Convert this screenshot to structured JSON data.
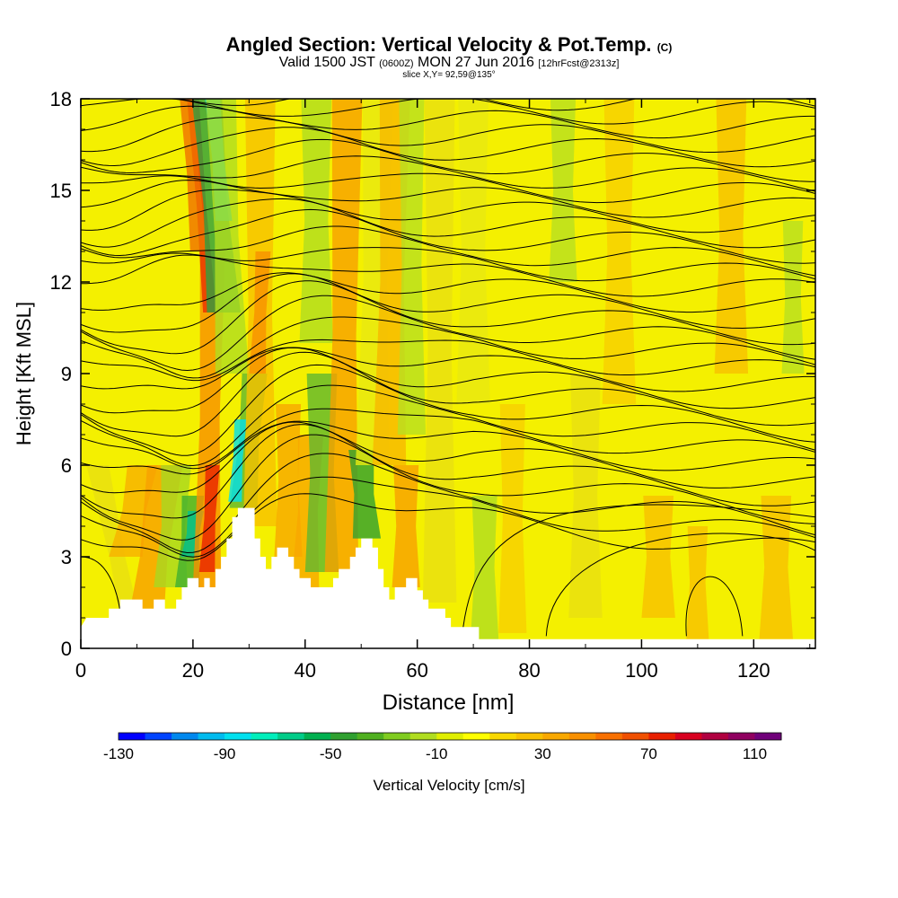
{
  "header": {
    "title": "Angled Section: Vertical Velocity & Pot.Temp.",
    "title_unit": "(C)",
    "valid_prefix": "Valid 1500 JST",
    "valid_zulu": "(0600Z)",
    "valid_date": "MON 27 Jun 2016",
    "forecast": "[12hrFcst@2313z]",
    "slice": "slice X,Y= 92,59@135°"
  },
  "chart_data": {
    "type": "heatmap",
    "xlabel": "Distance [nm]",
    "ylabel": "Height [Kft MSL]",
    "xlim": [
      0,
      131
    ],
    "ylim": [
      0,
      18
    ],
    "x_ticks": [
      0,
      20,
      40,
      60,
      80,
      100,
      120
    ],
    "y_ticks": [
      0,
      3,
      6,
      9,
      12,
      15,
      18
    ],
    "colorbar": {
      "label": "Vertical Velocity [cm/s]",
      "tick_labels": [
        -130,
        -90,
        -50,
        -10,
        30,
        70,
        110
      ],
      "bins": [
        -130,
        -120,
        -110,
        -100,
        -90,
        -80,
        -70,
        -60,
        -50,
        -40,
        -30,
        -20,
        -10,
        0,
        10,
        20,
        30,
        40,
        50,
        60,
        70,
        80,
        90,
        100,
        110,
        120
      ],
      "colors": [
        "#0000ff",
        "#0044ff",
        "#0088ee",
        "#00bbee",
        "#00e0ee",
        "#00eebb",
        "#00cc88",
        "#00b050",
        "#30a030",
        "#50b020",
        "#80cc20",
        "#b0dd20",
        "#e0ee00",
        "#ffff00",
        "#f8d800",
        "#f8c000",
        "#f8a800",
        "#f89000",
        "#f87000",
        "#f05000",
        "#e82000",
        "#d80020",
        "#b00040",
        "#900060",
        "#70007a"
      ]
    },
    "terrain_kft": [
      [
        0,
        0.7
      ],
      [
        1,
        1.0
      ],
      [
        5,
        1.0
      ],
      [
        5,
        1.3
      ],
      [
        7,
        1.3
      ],
      [
        7,
        1.6
      ],
      [
        11,
        1.6
      ],
      [
        11,
        1.3
      ],
      [
        13,
        1.3
      ],
      [
        13,
        1.6
      ],
      [
        15,
        1.6
      ],
      [
        15,
        1.3
      ],
      [
        17,
        1.3
      ],
      [
        17,
        1.6
      ],
      [
        18,
        1.6
      ],
      [
        18,
        2.0
      ],
      [
        19,
        2.0
      ],
      [
        19,
        2.3
      ],
      [
        21,
        2.3
      ],
      [
        21,
        2.0
      ],
      [
        22,
        2.0
      ],
      [
        22,
        2.3
      ],
      [
        23,
        2.3
      ],
      [
        23,
        2.0
      ],
      [
        24,
        2.0
      ],
      [
        24,
        2.6
      ],
      [
        25,
        2.6
      ],
      [
        25,
        3.0
      ],
      [
        26,
        3.0
      ],
      [
        26,
        3.6
      ],
      [
        27,
        3.6
      ],
      [
        27,
        4.3
      ],
      [
        28,
        4.3
      ],
      [
        28,
        4.6
      ],
      [
        31,
        4.6
      ],
      [
        31,
        3.6
      ],
      [
        32,
        3.6
      ],
      [
        32,
        3.0
      ],
      [
        33,
        3.0
      ],
      [
        33,
        2.6
      ],
      [
        34,
        2.6
      ],
      [
        34,
        3.0
      ],
      [
        35,
        3.0
      ],
      [
        35,
        3.3
      ],
      [
        37,
        3.3
      ],
      [
        37,
        3.0
      ],
      [
        38,
        3.0
      ],
      [
        38,
        2.6
      ],
      [
        39,
        2.6
      ],
      [
        39,
        2.3
      ],
      [
        41,
        2.3
      ],
      [
        41,
        2.0
      ],
      [
        45,
        2.0
      ],
      [
        45,
        2.3
      ],
      [
        46,
        2.3
      ],
      [
        46,
        2.6
      ],
      [
        48,
        2.6
      ],
      [
        48,
        3.0
      ],
      [
        49,
        3.0
      ],
      [
        49,
        3.3
      ],
      [
        50,
        3.3
      ],
      [
        50,
        3.6
      ],
      [
        52,
        3.6
      ],
      [
        52,
        3.3
      ],
      [
        53,
        3.3
      ],
      [
        53,
        2.6
      ],
      [
        54,
        2.6
      ],
      [
        54,
        2.0
      ],
      [
        55,
        2.0
      ],
      [
        55,
        1.6
      ],
      [
        56,
        1.6
      ],
      [
        56,
        2.0
      ],
      [
        58,
        2.0
      ],
      [
        58,
        2.3
      ],
      [
        60,
        2.3
      ],
      [
        60,
        1.9
      ],
      [
        61,
        1.9
      ],
      [
        61,
        1.6
      ],
      [
        62,
        1.6
      ],
      [
        62,
        1.3
      ],
      [
        65,
        1.3
      ],
      [
        65,
        1.0
      ],
      [
        66,
        1.0
      ],
      [
        66,
        0.7
      ],
      [
        71,
        0.7
      ],
      [
        71,
        0.3
      ],
      [
        131,
        0.3
      ]
    ]
  }
}
